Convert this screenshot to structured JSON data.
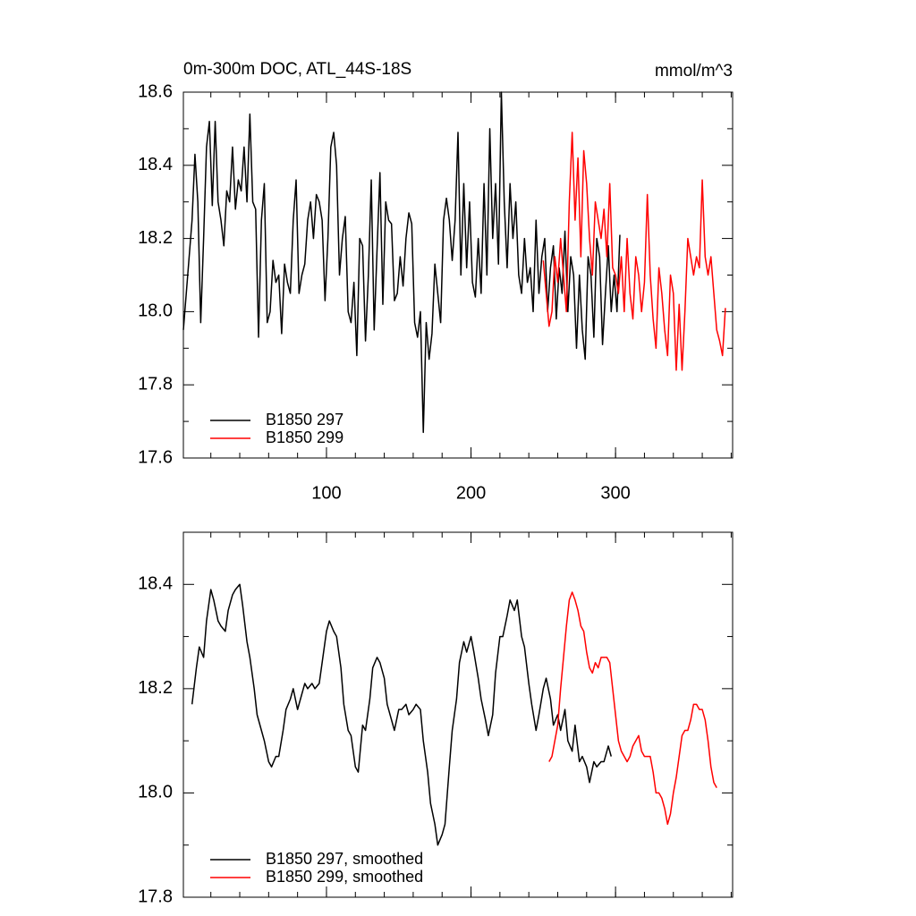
{
  "chart_data": [
    {
      "type": "line",
      "title": "0m-300m DOC, ATL_44S-18S",
      "units": "mmol/m^3",
      "xlim": [
        1,
        381
      ],
      "xticks": [
        100,
        200,
        300
      ],
      "ylim": [
        17.6,
        18.6
      ],
      "yticks": [
        {
          "value": 17.6,
          "label": "17.6"
        },
        {
          "value": 17.8,
          "label": "17.8"
        },
        {
          "value": 18.0,
          "label": "18.0"
        },
        {
          "value": 18.2,
          "label": "18.2"
        },
        {
          "value": 18.4,
          "label": "18.4"
        },
        {
          "value": 18.6,
          "label": "18.6"
        }
      ],
      "legend": "lower left",
      "series": [
        {
          "name": "B1850 297",
          "color": "#000000",
          "x": [
            1,
            4,
            7,
            9,
            11,
            13,
            15,
            17,
            19,
            21,
            23,
            25,
            27,
            29,
            31,
            33,
            35,
            37,
            39,
            41,
            43,
            45,
            47,
            49,
            51,
            53,
            55,
            57,
            59,
            61,
            63,
            65,
            67,
            69,
            71,
            73,
            75,
            77,
            79,
            81,
            83,
            85,
            87,
            89,
            91,
            93,
            95,
            97,
            99,
            101,
            103,
            105,
            107,
            109,
            111,
            113,
            115,
            117,
            119,
            121,
            123,
            125,
            127,
            129,
            131,
            133,
            135,
            137,
            139,
            141,
            143,
            145,
            147,
            149,
            151,
            153,
            155,
            157,
            159,
            161,
            163,
            165,
            167,
            169,
            171,
            173,
            175,
            177,
            179,
            181,
            183,
            185,
            187,
            189,
            191,
            193,
            195,
            197,
            199,
            201,
            203,
            205,
            207,
            209,
            211,
            213,
            215,
            217,
            219,
            221,
            223,
            225,
            227,
            229,
            231,
            233,
            235,
            237,
            239,
            241,
            243,
            245,
            247,
            249,
            251,
            253,
            255,
            257,
            259,
            261,
            263,
            265,
            267,
            269,
            271,
            273,
            275,
            277,
            279,
            281,
            283,
            285,
            287,
            289,
            291,
            293,
            295,
            297,
            299,
            301,
            303
          ],
          "values": [
            17.95,
            18.1,
            18.25,
            18.43,
            18.3,
            17.97,
            18.2,
            18.45,
            18.52,
            18.29,
            18.52,
            18.3,
            18.25,
            18.18,
            18.33,
            18.3,
            18.45,
            18.28,
            18.36,
            18.33,
            18.45,
            18.3,
            18.54,
            18.3,
            18.28,
            17.93,
            18.25,
            18.35,
            17.97,
            18.0,
            18.14,
            18.08,
            18.1,
            17.94,
            18.13,
            18.08,
            18.05,
            18.25,
            18.36,
            18.05,
            18.1,
            18.13,
            18.25,
            18.3,
            18.2,
            18.32,
            18.3,
            18.25,
            18.03,
            18.2,
            18.45,
            18.49,
            18.4,
            18.1,
            18.2,
            18.26,
            18.0,
            17.97,
            18.08,
            17.88,
            18.2,
            18.18,
            17.92,
            18.1,
            18.36,
            17.95,
            18.17,
            18.38,
            18.02,
            18.3,
            18.25,
            18.24,
            18.03,
            18.05,
            18.15,
            18.07,
            18.2,
            18.27,
            18.24,
            17.97,
            17.93,
            18.0,
            17.67,
            17.97,
            17.87,
            17.94,
            18.13,
            18.05,
            17.97,
            18.25,
            18.31,
            18.25,
            18.14,
            18.25,
            18.49,
            18.1,
            18.35,
            18.12,
            18.3,
            18.08,
            18.04,
            18.2,
            18.05,
            18.35,
            18.1,
            18.5,
            18.2,
            18.35,
            18.13,
            18.6,
            18.3,
            18.12,
            18.35,
            18.2,
            18.3,
            18.1,
            18.05,
            18.2,
            18.08,
            18.12,
            18.0,
            18.25,
            18.05,
            18.15,
            18.2,
            18.0,
            18.12,
            18.18,
            17.98,
            18.12,
            18.05,
            18.22,
            18.0,
            18.15,
            18.1,
            17.9,
            18.1,
            17.95,
            17.87,
            18.15,
            18.1,
            17.93,
            18.2,
            18.15,
            17.91,
            18.05,
            18.18,
            18.0,
            18.1,
            18.0,
            18.21
          ]
        },
        {
          "name": "B1850 299",
          "color": "#ff0000",
          "x": [
            250,
            252,
            254,
            256,
            258,
            260,
            262,
            264,
            266,
            268,
            270,
            272,
            274,
            276,
            278,
            280,
            282,
            284,
            286,
            288,
            290,
            292,
            294,
            296,
            298,
            300,
            302,
            304,
            306,
            308,
            310,
            312,
            314,
            316,
            318,
            320,
            322,
            324,
            326,
            328,
            330,
            332,
            334,
            336,
            338,
            340,
            342,
            344,
            346,
            348,
            350,
            352,
            354,
            356,
            358,
            360,
            362,
            364,
            366,
            368,
            370,
            372,
            374,
            376
          ],
          "values": [
            18.14,
            18.05,
            17.96,
            18.0,
            18.15,
            18.08,
            18.2,
            18.1,
            18.0,
            18.3,
            18.49,
            18.25,
            18.42,
            18.15,
            18.44,
            18.35,
            18.2,
            18.1,
            18.3,
            18.25,
            18.2,
            18.28,
            18.15,
            18.35,
            18.12,
            18.1,
            18.05,
            18.15,
            18.0,
            18.2,
            18.05,
            17.98,
            18.15,
            18.1,
            18.0,
            18.08,
            18.32,
            18.1,
            17.98,
            17.9,
            18.12,
            18.05,
            17.95,
            17.88,
            18.1,
            18.05,
            17.84,
            18.02,
            17.84,
            18.0,
            18.2,
            18.15,
            18.1,
            18.15,
            18.12,
            18.36,
            18.15,
            18.1,
            18.15,
            18.05,
            17.95,
            17.92,
            17.88,
            18.01
          ]
        }
      ]
    },
    {
      "type": "line",
      "xlim": [
        1,
        381
      ],
      "xticks": [
        100,
        200,
        300
      ],
      "xtick_labels": false,
      "ylim": [
        17.8,
        18.5
      ],
      "yticks": [
        {
          "value": 17.8,
          "label": "17.8"
        },
        {
          "value": 18.0,
          "label": "18.0"
        },
        {
          "value": 18.2,
          "label": "18.2"
        },
        {
          "value": 18.4,
          "label": "18.4"
        }
      ],
      "legend": "lower left",
      "series": [
        {
          "name": "B1850 297, smoothed",
          "color": "#000000",
          "x": [
            7,
            10,
            12,
            15,
            17,
            20,
            22,
            25,
            27,
            30,
            32,
            35,
            37,
            40,
            42,
            45,
            47,
            50,
            52,
            55,
            57,
            60,
            62,
            65,
            67,
            70,
            72,
            75,
            77,
            80,
            82,
            85,
            87,
            90,
            92,
            95,
            97,
            100,
            102,
            105,
            107,
            110,
            112,
            115,
            117,
            120,
            122,
            125,
            127,
            130,
            132,
            135,
            137,
            140,
            142,
            145,
            147,
            150,
            152,
            155,
            157,
            160,
            162,
            165,
            167,
            170,
            172,
            175,
            177,
            180,
            182,
            185,
            187,
            190,
            192,
            195,
            197,
            200,
            202,
            205,
            207,
            210,
            212,
            215,
            217,
            220,
            222,
            225,
            227,
            230,
            232,
            235,
            237,
            240,
            242,
            245,
            247,
            250,
            252,
            255,
            257,
            260,
            262,
            265,
            267,
            270,
            272,
            275,
            277,
            280,
            282,
            285,
            287,
            290,
            292,
            295,
            297
          ],
          "values": [
            18.17,
            18.24,
            18.28,
            18.26,
            18.33,
            18.39,
            18.37,
            18.33,
            18.32,
            18.31,
            18.35,
            18.38,
            18.39,
            18.4,
            18.36,
            18.29,
            18.26,
            18.2,
            18.15,
            18.12,
            18.1,
            18.06,
            18.05,
            18.07,
            18.07,
            18.12,
            18.16,
            18.18,
            18.2,
            18.16,
            18.18,
            18.21,
            18.2,
            18.21,
            18.2,
            18.21,
            18.25,
            18.31,
            18.33,
            18.31,
            18.3,
            18.24,
            18.17,
            18.12,
            18.11,
            18.05,
            18.04,
            18.13,
            18.12,
            18.18,
            18.24,
            18.26,
            18.25,
            18.22,
            18.17,
            18.14,
            18.12,
            18.16,
            18.16,
            18.17,
            18.15,
            18.16,
            18.17,
            18.16,
            18.1,
            18.04,
            17.98,
            17.94,
            17.9,
            17.92,
            17.94,
            18.05,
            18.12,
            18.18,
            18.25,
            18.29,
            18.27,
            18.3,
            18.27,
            18.22,
            18.18,
            18.14,
            18.11,
            18.15,
            18.23,
            18.3,
            18.3,
            18.34,
            18.37,
            18.35,
            18.37,
            18.3,
            18.28,
            18.21,
            18.17,
            18.12,
            18.15,
            18.2,
            18.22,
            18.18,
            18.13,
            18.15,
            18.12,
            18.16,
            18.1,
            18.08,
            18.13,
            18.06,
            18.07,
            18.05,
            18.02,
            18.06,
            18.05,
            18.06,
            18.06,
            18.09,
            18.07
          ]
        },
        {
          "name": "B1850 299, smoothed",
          "color": "#ff0000",
          "x": [
            254,
            256,
            258,
            260,
            262,
            264,
            266,
            268,
            270,
            272,
            274,
            276,
            278,
            280,
            282,
            284,
            286,
            288,
            290,
            292,
            294,
            296,
            298,
            300,
            302,
            304,
            306,
            308,
            310,
            312,
            314,
            316,
            318,
            320,
            322,
            324,
            326,
            328,
            330,
            332,
            334,
            336,
            338,
            340,
            342,
            344,
            346,
            348,
            350,
            352,
            354,
            356,
            358,
            360,
            362,
            364,
            366,
            368,
            370
          ],
          "values": [
            18.06,
            18.07,
            18.1,
            18.13,
            18.2,
            18.26,
            18.32,
            18.37,
            18.385,
            18.37,
            18.35,
            18.32,
            18.31,
            18.27,
            18.24,
            18.23,
            18.25,
            18.24,
            18.26,
            18.26,
            18.26,
            18.25,
            18.2,
            18.15,
            18.1,
            18.08,
            18.07,
            18.06,
            18.07,
            18.09,
            18.1,
            18.11,
            18.08,
            18.07,
            18.07,
            18.07,
            18.04,
            18.0,
            18.0,
            17.99,
            17.97,
            17.94,
            17.96,
            18.0,
            18.03,
            18.07,
            18.11,
            18.12,
            18.12,
            18.14,
            18.17,
            18.17,
            18.16,
            18.16,
            18.14,
            18.1,
            18.05,
            18.02,
            18.01
          ]
        }
      ]
    }
  ]
}
